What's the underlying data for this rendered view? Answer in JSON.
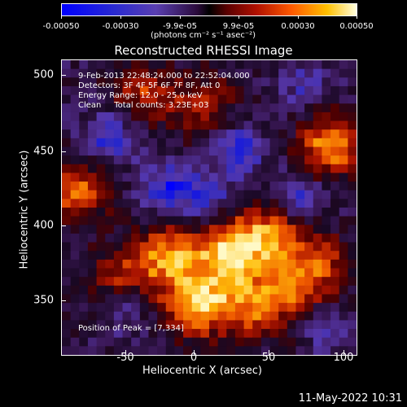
{
  "colorbar": {
    "tick_labels": [
      "-0.00050",
      "-0.00030",
      "-9.9e-05",
      "9.9e-05",
      "0.00030",
      "0.00050"
    ],
    "units": "(photons cm⁻² s⁻¹ asec⁻²)"
  },
  "title": "Reconstructed RHESSI Image",
  "info_lines": [
    "9-Feb-2013 22:48:24.000 to 22:52:04.000",
    "Detectors: 3F 4F 5F 6F 7F 8F, Att 0",
    "Energy Range: 12.0 - 25.0 keV",
    "Clean     Total counts: 3.23E+03"
  ],
  "peak_label": "Position of Peak = [7,334]",
  "axes": {
    "xlabel": "Heliocentric X (arcsec)",
    "ylabel": "Heliocentric Y (arcsec)",
    "xticks": [
      "-50",
      "0",
      "50",
      "100"
    ],
    "yticks": [
      "500",
      "450",
      "400",
      "350"
    ]
  },
  "timestamp": "11-May-2022 10:31",
  "colors": {
    "negative": "#0000ff",
    "neutral": "#000000",
    "positive": "#ffffe0"
  }
}
